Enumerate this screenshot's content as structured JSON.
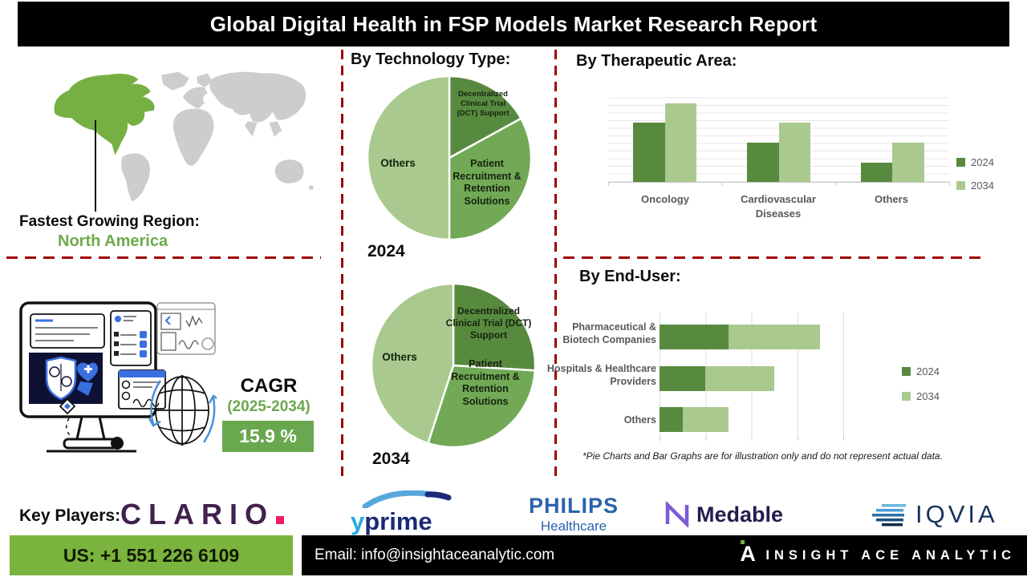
{
  "title": "Global Digital Health in FSP Models Market Research Report",
  "region": {
    "label": "Fastest Growing Region:",
    "value": "North America"
  },
  "technology": {
    "heading": "By Technology Type:",
    "year_2024": "2024",
    "year_2034": "2034"
  },
  "therapeutic": {
    "heading": "By Therapeutic Area:"
  },
  "enduser": {
    "heading": "By End-User:"
  },
  "disclaimer": "*Pie Charts and Bar Graphs are for illustration only and do not represent actual data.",
  "cagr": {
    "label": "CAGR",
    "period": "(2025-2034)",
    "value": "15.9 %"
  },
  "key_players": {
    "label": "Key Players:",
    "clario": {
      "wordmark": "CLARIO"
    },
    "yprime": {
      "y": "y",
      "prime": "prime"
    },
    "philips": {
      "name": "PHILIPS",
      "division": "Healthcare"
    },
    "medable": {
      "name": "Medable"
    },
    "iqvia": {
      "name": "IQVIA"
    }
  },
  "footer": {
    "phone": "US: +1 551 226 6109",
    "email": "Email: info@insightaceanalytic.com",
    "brand": "INSIGHT ACE ANALYTIC"
  },
  "colors": {
    "green_dark": "#578a3e",
    "green_mid": "#71a956",
    "green_light": "#a9c98e",
    "map_green": "#76b043",
    "accent_red": "#a00000",
    "cagr_green": "#6aa84f",
    "footer_green": "#7ab33e"
  },
  "chart_data": [
    {
      "type": "pie",
      "title": "By Technology Type — 2024",
      "labels": [
        "Decentralized Clinical Trial (DCT) Support",
        "Patient Recruitment & Retention Solutions",
        "Others"
      ],
      "values": [
        17,
        33,
        50
      ]
    },
    {
      "type": "pie",
      "title": "By Technology Type — 2034",
      "labels": [
        "Decentralized Clinical Trial (DCT) Support",
        "Patient Recruitment & Retention Solutions",
        "Others"
      ],
      "values": [
        26,
        29,
        45
      ]
    },
    {
      "type": "bar",
      "title": "By Therapeutic Area:",
      "categories": [
        "Oncology",
        "Cardiovascular Diseases",
        "Others"
      ],
      "series": [
        {
          "name": "2024",
          "values": [
            65,
            43,
            21
          ]
        },
        {
          "name": "2034",
          "values": [
            86,
            65,
            43
          ]
        }
      ],
      "ylim": [
        0,
        100
      ],
      "grid": true,
      "legend_position": "right"
    },
    {
      "type": "bar-horizontal-stacked",
      "title": "By End-User:",
      "categories": [
        "Pharmaceutical & Biotech Companies",
        "Hospitals & Healthcare Providers",
        "Others"
      ],
      "series": [
        {
          "name": "2024",
          "values": [
            1.5,
            1.0,
            0.5
          ]
        },
        {
          "name": "2034",
          "values": [
            2.0,
            1.5,
            1.0
          ]
        }
      ],
      "xlim": [
        0,
        4.2
      ],
      "grid": true,
      "legend_position": "right"
    }
  ]
}
